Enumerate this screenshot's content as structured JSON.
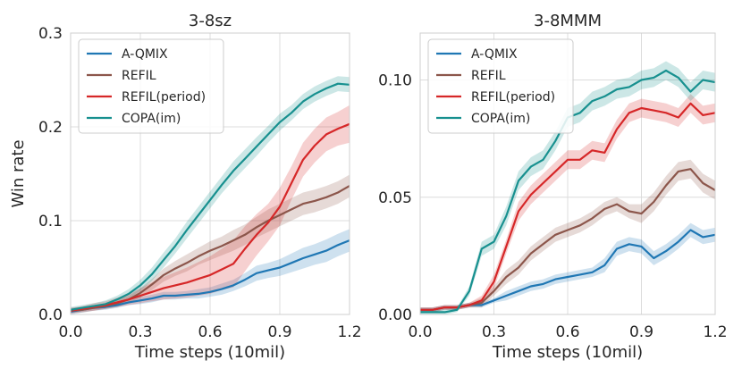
{
  "chart_data": [
    {
      "type": "line",
      "title": "3-8sz",
      "xlabel": "Time steps (10mil)",
      "ylabel": "Win rate",
      "xlim": [
        0.0,
        1.2
      ],
      "ylim": [
        0.0,
        0.3
      ],
      "xticks": [
        "0.0",
        "0.3",
        "0.6",
        "0.9",
        "1.2"
      ],
      "yticks": [
        "0.0",
        "0.1",
        "0.2",
        "0.3"
      ],
      "grid": true,
      "legend": "top-left",
      "series": [
        {
          "name": "A-QMIX",
          "color": "#1f77b4",
          "x": [
            0,
            0.05,
            0.1,
            0.15,
            0.2,
            0.25,
            0.3,
            0.35,
            0.4,
            0.45,
            0.5,
            0.55,
            0.6,
            0.65,
            0.7,
            0.75,
            0.8,
            0.85,
            0.9,
            0.95,
            1.0,
            1.05,
            1.1,
            1.15,
            1.2
          ],
          "y": [
            0.003,
            0.005,
            0.007,
            0.008,
            0.01,
            0.013,
            0.015,
            0.017,
            0.02,
            0.02,
            0.021,
            0.022,
            0.024,
            0.027,
            0.031,
            0.037,
            0.044,
            0.047,
            0.05,
            0.055,
            0.06,
            0.064,
            0.068,
            0.074,
            0.079
          ],
          "band": [
            0.003,
            0.003,
            0.003,
            0.003,
            0.003,
            0.003,
            0.004,
            0.004,
            0.004,
            0.004,
            0.004,
            0.005,
            0.005,
            0.006,
            0.006,
            0.007,
            0.008,
            0.008,
            0.009,
            0.01,
            0.011,
            0.011,
            0.012,
            0.012,
            0.012
          ]
        },
        {
          "name": "REFIL",
          "color": "#8c564b",
          "x": [
            0,
            0.05,
            0.1,
            0.15,
            0.2,
            0.25,
            0.3,
            0.35,
            0.4,
            0.45,
            0.5,
            0.55,
            0.6,
            0.65,
            0.7,
            0.75,
            0.8,
            0.85,
            0.9,
            0.95,
            1.0,
            1.05,
            1.1,
            1.15,
            1.2
          ],
          "y": [
            0.004,
            0.005,
            0.007,
            0.009,
            0.012,
            0.016,
            0.023,
            0.032,
            0.042,
            0.049,
            0.055,
            0.062,
            0.068,
            0.073,
            0.079,
            0.085,
            0.093,
            0.1,
            0.106,
            0.112,
            0.118,
            0.121,
            0.125,
            0.13,
            0.137
          ],
          "band": [
            0.003,
            0.003,
            0.003,
            0.003,
            0.004,
            0.004,
            0.005,
            0.006,
            0.007,
            0.008,
            0.009,
            0.009,
            0.01,
            0.01,
            0.011,
            0.011,
            0.011,
            0.012,
            0.012,
            0.012,
            0.012,
            0.012,
            0.012,
            0.012,
            0.012
          ]
        },
        {
          "name": "REFIL(period)",
          "color": "#d62728",
          "x": [
            0,
            0.05,
            0.1,
            0.15,
            0.2,
            0.25,
            0.3,
            0.35,
            0.4,
            0.45,
            0.5,
            0.55,
            0.6,
            0.65,
            0.7,
            0.75,
            0.8,
            0.85,
            0.9,
            0.95,
            1.0,
            1.05,
            1.1,
            1.15,
            1.2
          ],
          "y": [
            0.004,
            0.006,
            0.008,
            0.01,
            0.013,
            0.016,
            0.02,
            0.024,
            0.028,
            0.031,
            0.034,
            0.038,
            0.042,
            0.048,
            0.054,
            0.07,
            0.085,
            0.098,
            0.115,
            0.14,
            0.165,
            0.18,
            0.192,
            0.198,
            0.203
          ],
          "band": [
            0.003,
            0.003,
            0.004,
            0.004,
            0.005,
            0.006,
            0.008,
            0.01,
            0.012,
            0.014,
            0.016,
            0.018,
            0.02,
            0.022,
            0.025,
            0.024,
            0.022,
            0.02,
            0.02,
            0.018,
            0.018,
            0.018,
            0.018,
            0.018,
            0.02
          ]
        },
        {
          "name": "COPA(im)",
          "color": "#17908f",
          "x": [
            0,
            0.05,
            0.1,
            0.15,
            0.2,
            0.25,
            0.3,
            0.35,
            0.4,
            0.45,
            0.5,
            0.55,
            0.6,
            0.65,
            0.7,
            0.75,
            0.8,
            0.85,
            0.9,
            0.95,
            1.0,
            1.05,
            1.1,
            1.15,
            1.2
          ],
          "y": [
            0.005,
            0.007,
            0.009,
            0.011,
            0.016,
            0.022,
            0.031,
            0.043,
            0.058,
            0.073,
            0.09,
            0.106,
            0.122,
            0.138,
            0.153,
            0.166,
            0.179,
            0.192,
            0.205,
            0.215,
            0.227,
            0.235,
            0.241,
            0.246,
            0.245
          ],
          "band": [
            0.003,
            0.003,
            0.003,
            0.004,
            0.004,
            0.005,
            0.006,
            0.007,
            0.008,
            0.008,
            0.009,
            0.009,
            0.009,
            0.009,
            0.01,
            0.01,
            0.01,
            0.009,
            0.009,
            0.008,
            0.008,
            0.008,
            0.008,
            0.008,
            0.008
          ]
        }
      ]
    },
    {
      "type": "line",
      "title": "3-8MMM",
      "xlabel": "Time steps (10mil)",
      "ylabel": "",
      "xlim": [
        0.0,
        1.2
      ],
      "ylim": [
        0.0,
        0.12
      ],
      "xticks": [
        "0.0",
        "0.3",
        "0.6",
        "0.9",
        "1.2"
      ],
      "yticks": [
        "0.00",
        "0.05",
        "0.10"
      ],
      "grid": true,
      "legend": "top-left",
      "series": [
        {
          "name": "A-QMIX",
          "color": "#1f77b4",
          "x": [
            0,
            0.05,
            0.1,
            0.15,
            0.2,
            0.25,
            0.3,
            0.35,
            0.4,
            0.45,
            0.5,
            0.55,
            0.6,
            0.65,
            0.7,
            0.75,
            0.8,
            0.85,
            0.9,
            0.95,
            1.0,
            1.05,
            1.1,
            1.15,
            1.2
          ],
          "y": [
            0.002,
            0.002,
            0.003,
            0.003,
            0.004,
            0.004,
            0.006,
            0.008,
            0.01,
            0.012,
            0.013,
            0.015,
            0.016,
            0.017,
            0.018,
            0.021,
            0.028,
            0.03,
            0.029,
            0.024,
            0.027,
            0.031,
            0.036,
            0.033,
            0.034
          ],
          "band": [
            0.001,
            0.001,
            0.001,
            0.001,
            0.001,
            0.001,
            0.001,
            0.002,
            0.002,
            0.002,
            0.002,
            0.002,
            0.002,
            0.002,
            0.002,
            0.003,
            0.003,
            0.003,
            0.003,
            0.003,
            0.003,
            0.003,
            0.003,
            0.003,
            0.003
          ]
        },
        {
          "name": "REFIL",
          "color": "#8c564b",
          "x": [
            0,
            0.05,
            0.1,
            0.15,
            0.2,
            0.25,
            0.3,
            0.35,
            0.4,
            0.45,
            0.5,
            0.55,
            0.6,
            0.65,
            0.7,
            0.75,
            0.8,
            0.85,
            0.9,
            0.95,
            1.0,
            1.05,
            1.1,
            1.15,
            1.2
          ],
          "y": [
            0.002,
            0.002,
            0.003,
            0.003,
            0.004,
            0.005,
            0.01,
            0.016,
            0.02,
            0.026,
            0.03,
            0.034,
            0.036,
            0.038,
            0.041,
            0.045,
            0.047,
            0.044,
            0.043,
            0.048,
            0.055,
            0.061,
            0.062,
            0.056,
            0.053
          ],
          "band": [
            0.001,
            0.001,
            0.001,
            0.001,
            0.001,
            0.002,
            0.002,
            0.003,
            0.003,
            0.003,
            0.003,
            0.003,
            0.003,
            0.003,
            0.003,
            0.003,
            0.003,
            0.003,
            0.004,
            0.004,
            0.004,
            0.004,
            0.004,
            0.004,
            0.004
          ]
        },
        {
          "name": "REFIL(period)",
          "color": "#d62728",
          "x": [
            0,
            0.05,
            0.1,
            0.15,
            0.2,
            0.25,
            0.3,
            0.35,
            0.4,
            0.45,
            0.5,
            0.55,
            0.6,
            0.65,
            0.7,
            0.75,
            0.8,
            0.85,
            0.9,
            0.95,
            1.0,
            1.05,
            1.1,
            1.15,
            1.2
          ],
          "y": [
            0.002,
            0.002,
            0.003,
            0.003,
            0.004,
            0.006,
            0.014,
            0.029,
            0.044,
            0.051,
            0.056,
            0.061,
            0.066,
            0.066,
            0.07,
            0.069,
            0.079,
            0.086,
            0.088,
            0.087,
            0.086,
            0.084,
            0.09,
            0.085,
            0.086
          ],
          "band": [
            0.001,
            0.001,
            0.001,
            0.001,
            0.001,
            0.002,
            0.003,
            0.003,
            0.004,
            0.004,
            0.004,
            0.004,
            0.004,
            0.004,
            0.004,
            0.004,
            0.004,
            0.004,
            0.004,
            0.004,
            0.004,
            0.004,
            0.004,
            0.004,
            0.004
          ]
        },
        {
          "name": "COPA(im)",
          "color": "#17908f",
          "x": [
            0,
            0.05,
            0.1,
            0.15,
            0.2,
            0.25,
            0.3,
            0.35,
            0.4,
            0.45,
            0.5,
            0.55,
            0.6,
            0.65,
            0.7,
            0.75,
            0.8,
            0.85,
            0.9,
            0.95,
            1.0,
            1.05,
            1.1,
            1.15,
            1.2
          ],
          "y": [
            0.001,
            0.001,
            0.001,
            0.002,
            0.01,
            0.028,
            0.031,
            0.042,
            0.057,
            0.063,
            0.066,
            0.074,
            0.084,
            0.086,
            0.091,
            0.093,
            0.096,
            0.097,
            0.1,
            0.101,
            0.104,
            0.101,
            0.095,
            0.1,
            0.099
          ],
          "band": [
            0.001,
            0.001,
            0.001,
            0.001,
            0.002,
            0.003,
            0.003,
            0.004,
            0.004,
            0.004,
            0.004,
            0.004,
            0.004,
            0.004,
            0.004,
            0.004,
            0.004,
            0.004,
            0.004,
            0.004,
            0.004,
            0.004,
            0.004,
            0.004,
            0.004
          ]
        }
      ]
    }
  ]
}
